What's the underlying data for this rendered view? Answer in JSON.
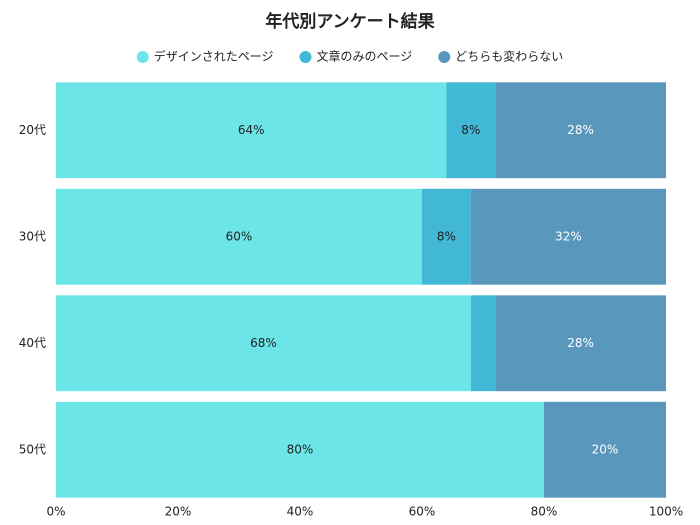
{
  "chart_data": {
    "type": "stacked-bar-horizontal",
    "title": "年代別アンケート結果",
    "categories": [
      "20代",
      "30代",
      "40代",
      "50代"
    ],
    "series": [
      {
        "name": "デザインされたページ",
        "color": "#6ce5e8",
        "label_color": "#222222",
        "values": [
          64,
          60,
          68,
          80
        ],
        "value_labels": [
          "64%",
          "60%",
          "68%",
          "80%"
        ]
      },
      {
        "name": "文章のみのページ",
        "color": "#41b8d5",
        "label_color": "#222222",
        "values": [
          8,
          8,
          4,
          0
        ],
        "value_labels": [
          "8%",
          "8%",
          null,
          null
        ]
      },
      {
        "name": "どちらも変わらない",
        "color": "#5a97bc",
        "label_color": "#ffffff",
        "values": [
          28,
          32,
          28,
          20
        ],
        "value_labels": [
          "28%",
          "32%",
          "28%",
          "20%"
        ]
      }
    ],
    "xlim": [
      0,
      100
    ],
    "xticks": [
      {
        "value": 0,
        "label": "0%"
      },
      {
        "value": 20,
        "label": "20%"
      },
      {
        "value": 40,
        "label": "40%"
      },
      {
        "value": 60,
        "label": "60%"
      },
      {
        "value": 80,
        "label": "80%"
      },
      {
        "value": 100,
        "label": "100%"
      }
    ],
    "grid": false,
    "legend": "top"
  }
}
